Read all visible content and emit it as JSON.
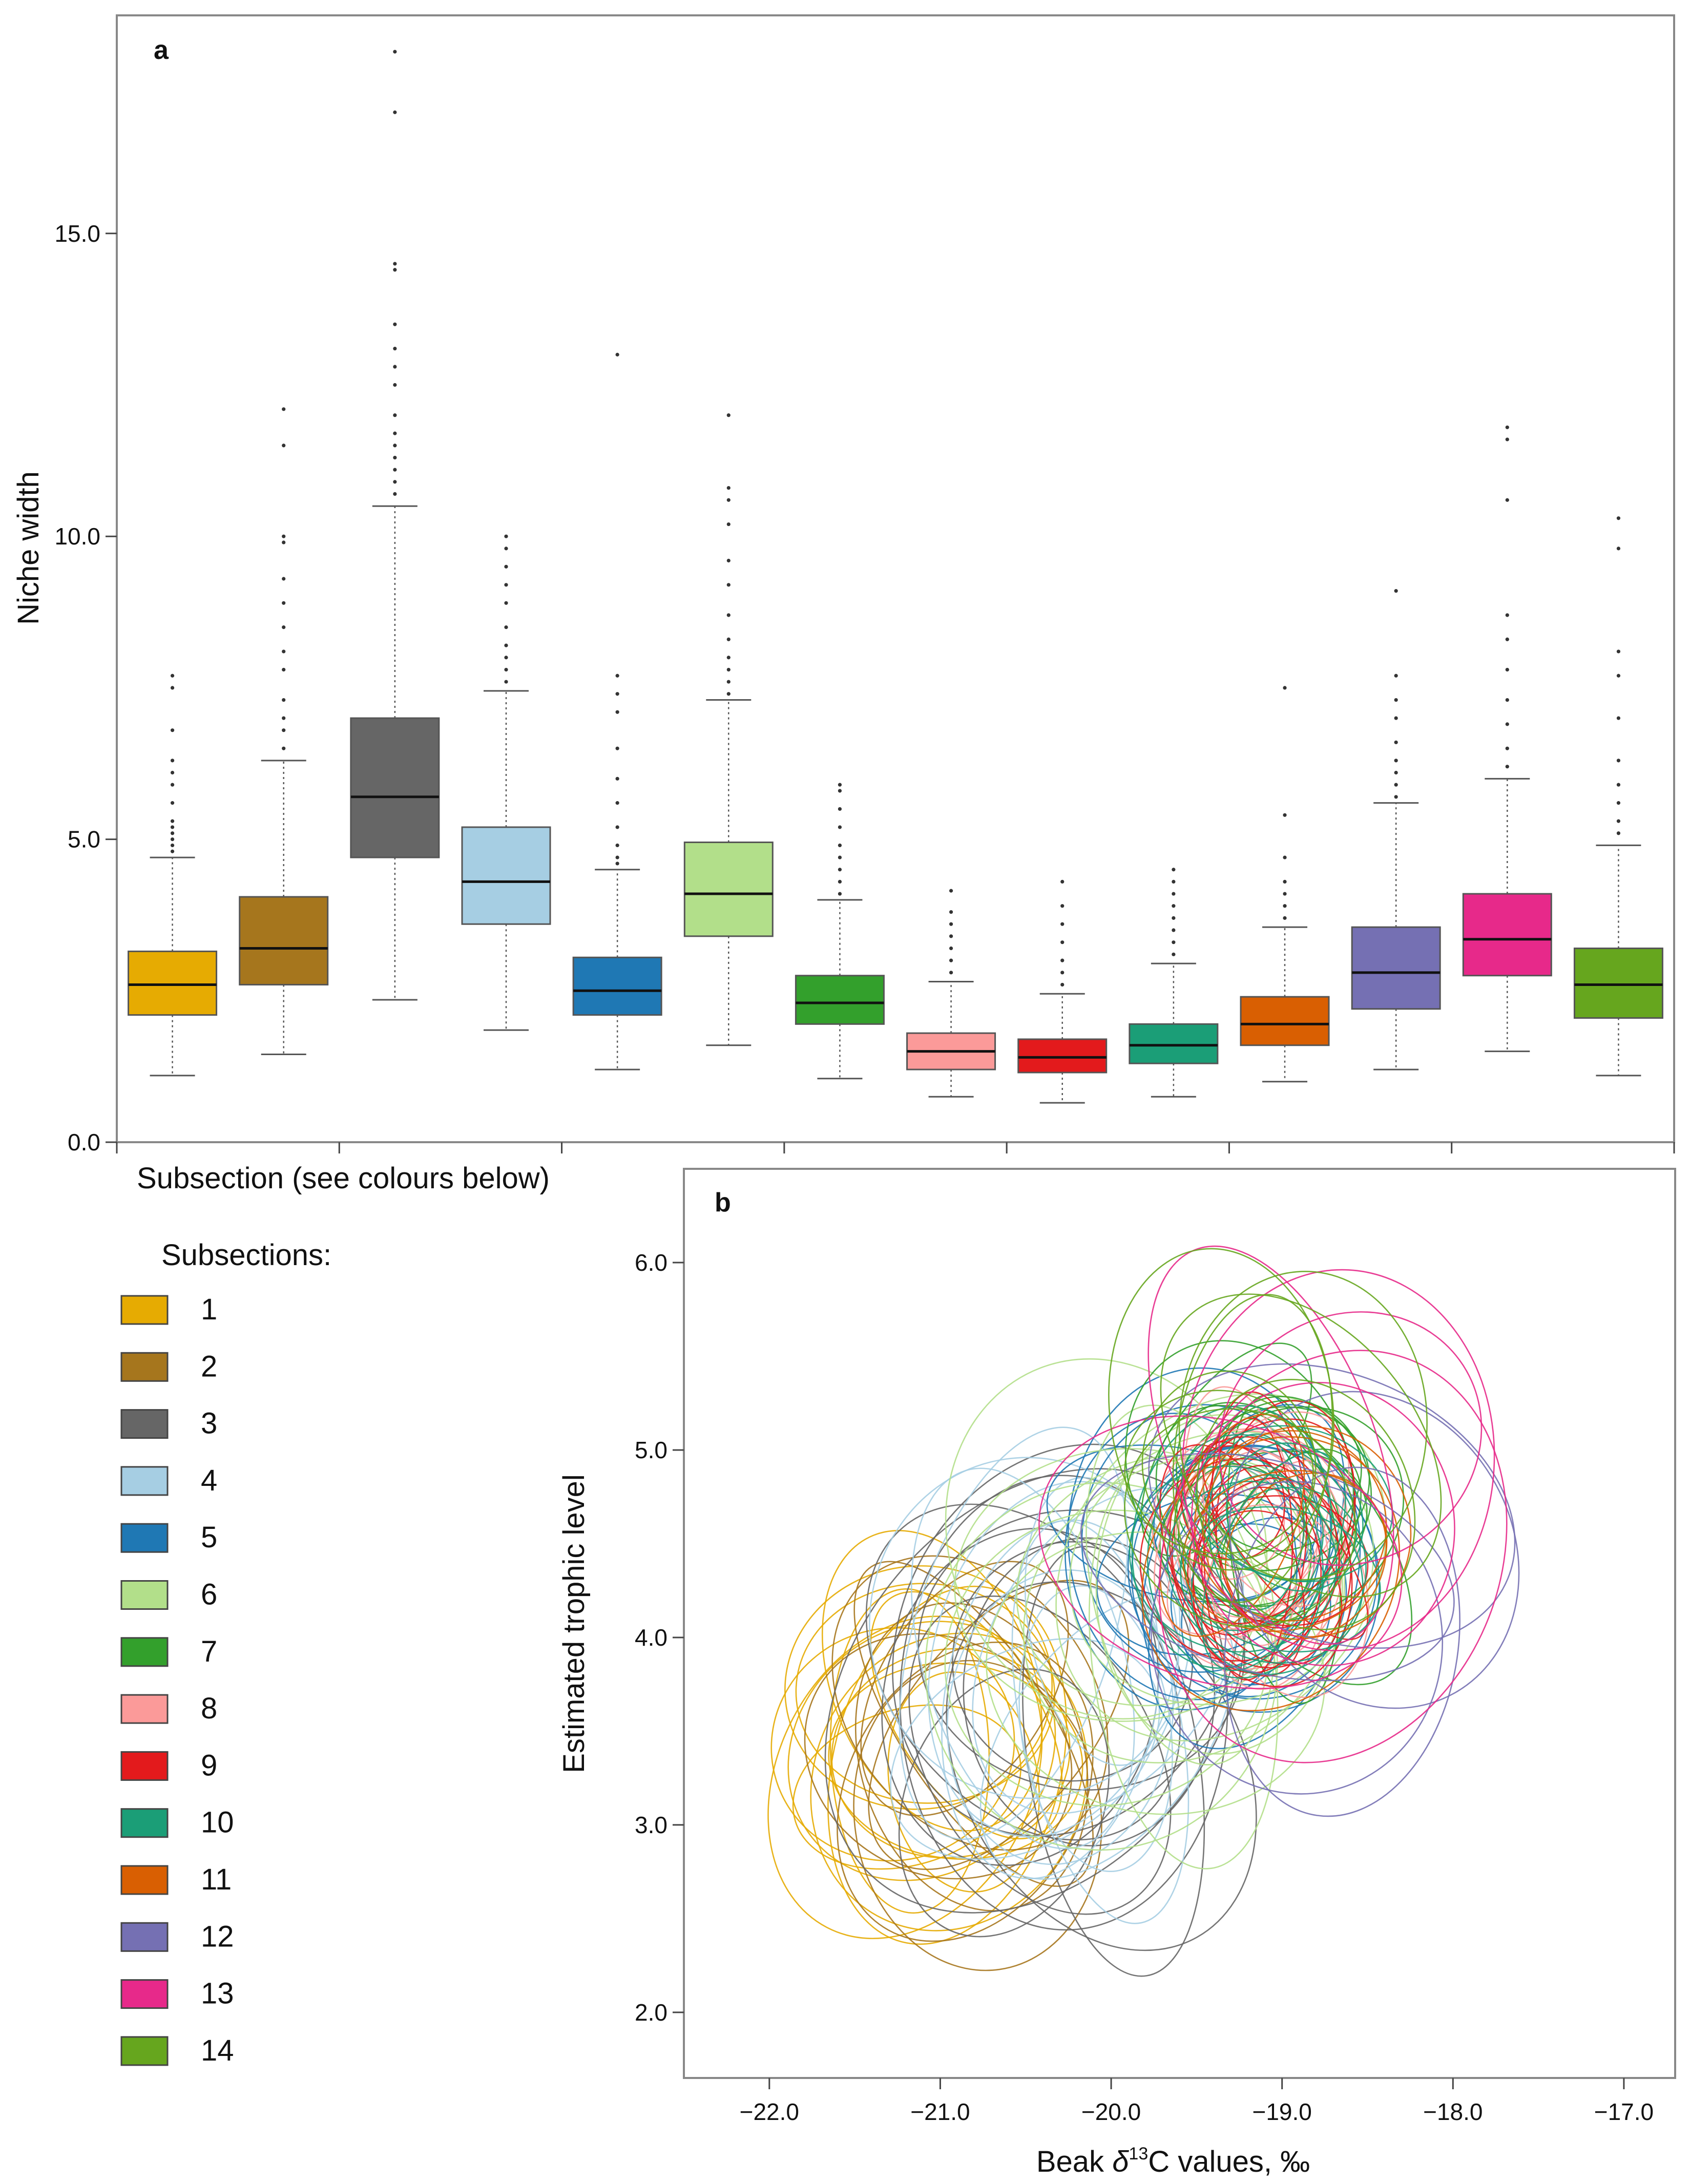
{
  "chart_data": [
    {
      "panel": "a",
      "type": "box",
      "ylabel": "Niche width",
      "xlabel": "Subsection (see colours below)",
      "ylim": [
        0,
        18.6
      ],
      "yticks": [
        "0.0",
        "5.0",
        "10.0",
        "15.0"
      ],
      "boxes": [
        {
          "subsection": "1",
          "color": "#E6AB02",
          "whisker_low": 1.1,
          "q1": 2.1,
          "median": 2.6,
          "q3": 3.15,
          "whisker_high": 4.7,
          "outliers": [
            4.8,
            4.9,
            5.0,
            5.1,
            5.2,
            5.3,
            5.6,
            5.9,
            6.1,
            6.3,
            6.8,
            7.5,
            7.7
          ]
        },
        {
          "subsection": "2",
          "color": "#A6761D",
          "whisker_low": 1.45,
          "q1": 2.6,
          "median": 3.2,
          "q3": 4.05,
          "whisker_high": 6.3,
          "outliers": [
            6.5,
            6.8,
            7.0,
            7.3,
            7.8,
            8.1,
            8.5,
            8.9,
            9.3,
            9.9,
            10.0,
            11.5,
            12.1
          ]
        },
        {
          "subsection": "3",
          "color": "#666666",
          "whisker_low": 2.35,
          "q1": 4.7,
          "median": 5.7,
          "q3": 7.0,
          "whisker_high": 10.5,
          "outliers": [
            10.7,
            10.9,
            11.1,
            11.3,
            11.5,
            11.7,
            12.0,
            12.5,
            12.8,
            13.1,
            13.5,
            14.4,
            14.5,
            17.0,
            18.0
          ]
        },
        {
          "subsection": "4",
          "color": "#A6CEE3",
          "whisker_low": 1.85,
          "q1": 3.6,
          "median": 4.3,
          "q3": 5.2,
          "whisker_high": 7.45,
          "outliers": [
            7.6,
            7.8,
            8.0,
            8.2,
            8.5,
            8.9,
            9.2,
            9.5,
            9.8,
            10.0
          ]
        },
        {
          "subsection": "5",
          "color": "#1F78B4",
          "whisker_low": 1.2,
          "q1": 2.1,
          "median": 2.5,
          "q3": 3.05,
          "whisker_high": 4.5,
          "outliers": [
            4.6,
            4.7,
            4.9,
            5.2,
            5.6,
            6.0,
            6.5,
            7.1,
            7.4,
            7.7,
            13.0
          ]
        },
        {
          "subsection": "6",
          "color": "#B2DF8A",
          "whisker_low": 1.6,
          "q1": 3.4,
          "median": 4.1,
          "q3": 4.95,
          "whisker_high": 7.3,
          "outliers": [
            7.4,
            7.6,
            7.8,
            8.0,
            8.3,
            8.7,
            9.2,
            9.6,
            10.2,
            10.6,
            10.8,
            12.0
          ]
        },
        {
          "subsection": "7",
          "color": "#33A02C",
          "whisker_low": 1.05,
          "q1": 1.95,
          "median": 2.3,
          "q3": 2.75,
          "whisker_high": 4.0,
          "outliers": [
            4.1,
            4.3,
            4.5,
            4.7,
            4.9,
            5.2,
            5.5,
            5.8,
            5.9
          ]
        },
        {
          "subsection": "8",
          "color": "#FB9A99",
          "whisker_low": 0.75,
          "q1": 1.2,
          "median": 1.5,
          "q3": 1.8,
          "whisker_high": 2.65,
          "outliers": [
            2.8,
            3.0,
            3.2,
            3.4,
            3.6,
            3.8,
            4.15
          ]
        },
        {
          "subsection": "9",
          "color": "#E31A1C",
          "whisker_low": 0.65,
          "q1": 1.15,
          "median": 1.4,
          "q3": 1.7,
          "whisker_high": 2.45,
          "outliers": [
            2.6,
            2.8,
            3.0,
            3.3,
            3.6,
            3.9,
            4.3
          ]
        },
        {
          "subsection": "10",
          "color": "#1B9E77",
          "whisker_low": 0.75,
          "q1": 1.3,
          "median": 1.6,
          "q3": 1.95,
          "whisker_high": 2.95,
          "outliers": [
            3.1,
            3.3,
            3.5,
            3.7,
            3.9,
            4.1,
            4.3,
            4.5
          ]
        },
        {
          "subsection": "11",
          "color": "#D95F02",
          "whisker_low": 1.0,
          "q1": 1.6,
          "median": 1.95,
          "q3": 2.4,
          "whisker_high": 3.55,
          "outliers": [
            3.7,
            3.9,
            4.1,
            4.3,
            4.7,
            5.4,
            7.5
          ]
        },
        {
          "subsection": "12",
          "color": "#7570B3",
          "whisker_low": 1.2,
          "q1": 2.2,
          "median": 2.8,
          "q3": 3.55,
          "whisker_high": 5.6,
          "outliers": [
            5.7,
            5.9,
            6.1,
            6.3,
            6.6,
            7.0,
            7.3,
            7.7,
            9.1
          ]
        },
        {
          "subsection": "13",
          "color": "#E7298A",
          "whisker_low": 1.5,
          "q1": 2.75,
          "median": 3.35,
          "q3": 4.1,
          "whisker_high": 6.0,
          "outliers": [
            6.2,
            6.5,
            6.9,
            7.3,
            7.8,
            8.3,
            8.7,
            10.6,
            11.6,
            11.8
          ]
        },
        {
          "subsection": "14",
          "color": "#66A61E",
          "whisker_low": 1.1,
          "q1": 2.05,
          "median": 2.6,
          "q3": 3.2,
          "whisker_high": 4.9,
          "outliers": [
            5.1,
            5.3,
            5.6,
            5.9,
            6.3,
            7.0,
            7.7,
            8.1,
            9.8,
            10.3
          ]
        }
      ]
    },
    {
      "panel": "b",
      "type": "ellipse-scatter",
      "xlabel_prefix": "Beak ",
      "xlabel_delta": "δ",
      "xlabel_sup": "13",
      "xlabel_suffix": "C values, ‰",
      "ylabel": "Estimated trophic level",
      "xlim": [
        -22.5,
        -16.7
      ],
      "ylim": [
        1.65,
        6.5
      ],
      "xticks": [
        "−22.0",
        "−21.0",
        "−20.0",
        "−19.0",
        "−18.0",
        "−17.0"
      ],
      "yticks": [
        "2.0",
        "3.0",
        "4.0",
        "5.0",
        "6.0"
      ],
      "groups": [
        {
          "subsection": "1",
          "color": "#E6AB02",
          "cx": -21.05,
          "cy": 3.45,
          "rx": 0.65,
          "ry": 0.75,
          "n": 14
        },
        {
          "subsection": "2",
          "color": "#A6761D",
          "cx": -20.85,
          "cy": 3.4,
          "rx": 0.7,
          "ry": 0.8,
          "n": 8
        },
        {
          "subsection": "3",
          "color": "#666666",
          "cx": -20.3,
          "cy": 3.5,
          "rx": 0.9,
          "ry": 1.15,
          "n": 12
        },
        {
          "subsection": "4",
          "color": "#A6CEE3",
          "cx": -20.35,
          "cy": 3.7,
          "rx": 0.75,
          "ry": 0.9,
          "n": 12
        },
        {
          "subsection": "5",
          "color": "#1F78B4",
          "cx": -19.35,
          "cy": 4.35,
          "rx": 0.7,
          "ry": 0.7,
          "n": 12
        },
        {
          "subsection": "6",
          "color": "#B2DF8A",
          "cx": -19.7,
          "cy": 4.15,
          "rx": 0.8,
          "ry": 0.85,
          "n": 12
        },
        {
          "subsection": "7",
          "color": "#33A02C",
          "cx": -19.1,
          "cy": 4.75,
          "rx": 0.55,
          "ry": 0.7,
          "n": 12
        },
        {
          "subsection": "8",
          "color": "#FB9A99",
          "cx": -19.15,
          "cy": 4.45,
          "rx": 0.45,
          "ry": 0.55,
          "n": 10
        },
        {
          "subsection": "9",
          "color": "#E31A1C",
          "cx": -19.1,
          "cy": 4.5,
          "rx": 0.45,
          "ry": 0.55,
          "n": 14
        },
        {
          "subsection": "10",
          "color": "#1B9E77",
          "cx": -19.15,
          "cy": 4.5,
          "rx": 0.5,
          "ry": 0.6,
          "n": 12
        },
        {
          "subsection": "11",
          "color": "#D95F02",
          "cx": -19.05,
          "cy": 4.35,
          "rx": 0.55,
          "ry": 0.6,
          "n": 6
        },
        {
          "subsection": "12",
          "color": "#7570B3",
          "cx": -18.85,
          "cy": 4.35,
          "rx": 0.9,
          "ry": 0.95,
          "n": 5
        },
        {
          "subsection": "13",
          "color": "#E7298A",
          "cx": -19.0,
          "cy": 4.75,
          "rx": 0.95,
          "ry": 0.9,
          "n": 6
        },
        {
          "subsection": "14",
          "color": "#66A61E",
          "cx": -19.1,
          "cy": 4.9,
          "rx": 0.6,
          "ry": 0.75,
          "n": 8
        }
      ]
    }
  ],
  "legend": {
    "title": "Subsections:",
    "items": [
      {
        "label": "1",
        "color": "#E6AB02"
      },
      {
        "label": "2",
        "color": "#A6761D"
      },
      {
        "label": "3",
        "color": "#666666"
      },
      {
        "label": "4",
        "color": "#A6CEE3"
      },
      {
        "label": "5",
        "color": "#1F78B4"
      },
      {
        "label": "6",
        "color": "#B2DF8A"
      },
      {
        "label": "7",
        "color": "#33A02C"
      },
      {
        "label": "8",
        "color": "#FB9A99"
      },
      {
        "label": "9",
        "color": "#E31A1C"
      },
      {
        "label": "10",
        "color": "#1B9E77"
      },
      {
        "label": "11",
        "color": "#D95F02"
      },
      {
        "label": "12",
        "color": "#7570B3"
      },
      {
        "label": "13",
        "color": "#E7298A"
      },
      {
        "label": "14",
        "color": "#66A61E"
      }
    ]
  }
}
